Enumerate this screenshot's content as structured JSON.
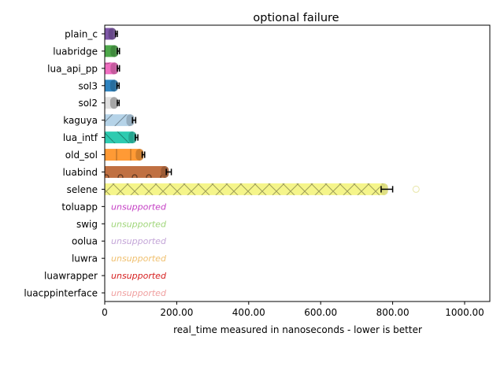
{
  "chart_data": {
    "type": "bar",
    "orientation": "horizontal",
    "title": "optional failure",
    "xlabel": "real_time measured in nanoseconds - lower is better",
    "ylabel": "",
    "xlim": [
      0,
      1070
    ],
    "x_ticks": [
      0,
      200,
      400,
      600,
      800,
      1000
    ],
    "x_tick_labels": [
      "0",
      "200.00",
      "400.00",
      "600.00",
      "800.00",
      "1000.00"
    ],
    "grid": false,
    "legend": "none",
    "categories": [
      "plain_c",
      "luabridge",
      "lua_api_pp",
      "sol3",
      "sol2",
      "kaguya",
      "lua_intf",
      "old_sol",
      "luabind",
      "selene",
      "toluapp",
      "swig",
      "oolua",
      "luwra",
      "luawrapper",
      "luacppinterface"
    ],
    "series": [
      {
        "values": [
          32,
          38,
          38,
          37,
          37,
          82,
          88,
          108,
          178,
          787,
          null,
          null,
          null,
          null,
          null,
          null
        ],
        "error_low": [
          30,
          35,
          35,
          34,
          35,
          77,
          85,
          104,
          171,
          768,
          null,
          null,
          null,
          null,
          null,
          null
        ],
        "error_high": [
          35,
          41,
          41,
          40,
          40,
          86,
          92,
          111,
          185,
          800,
          null,
          null,
          null,
          null,
          null,
          null
        ],
        "status": [
          "ok",
          "ok",
          "ok",
          "ok",
          "ok",
          "ok",
          "ok",
          "ok",
          "ok",
          "ok",
          "unsupported",
          "unsupported",
          "unsupported",
          "unsupported",
          "unsupported",
          "unsupported"
        ]
      }
    ],
    "outliers": [
      {
        "category": "selene",
        "value": 865
      }
    ],
    "bar_colors": [
      "#7e57a8",
      "#4da84a",
      "#f06ec1",
      "#2f84c0",
      "#e0e0e0",
      "#b5d3e8",
      "#2ecbb0",
      "#ff9a35",
      "#c07042",
      "#f5f58a"
    ],
    "bar_hatches": [
      "none",
      "none",
      "curves",
      "none",
      "dots",
      "diagonal",
      "back-diagonal",
      "vertical",
      "circles",
      "cross"
    ],
    "unsupported_label": "unsupported",
    "unsupported_colors": [
      "#c43fc4",
      "#a0d67a",
      "#c4a6d8",
      "#f0c070",
      "#d62020",
      "#f0a0a0"
    ]
  }
}
